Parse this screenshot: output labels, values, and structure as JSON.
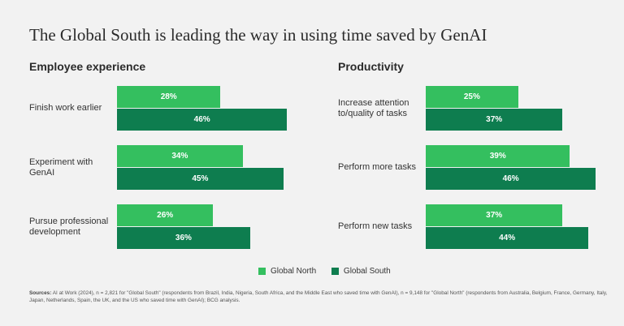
{
  "title": "The Global South is leading the way in using time saved by GenAI",
  "legend": {
    "north": "Global North",
    "south": "Global South",
    "north_color": "#34bf5f",
    "south_color": "#0e7d4f"
  },
  "sources": {
    "label": "Sources:",
    "text": "AI at Work (2024), n = 2,821 for \"Global South\" (respondents from Brazil, India, Nigeria, South Africa, and the Middle East who saved time with GenAI), n = 9,148 for \"Global North\" (respondents from Australia, Belgium, France, Germany, Italy, Japan, Netherlands, Spain, the UK, and the US who saved time with GenAI); BCG analysis."
  },
  "chart_data": [
    {
      "type": "bar",
      "orientation": "horizontal",
      "title": "Employee experience",
      "categories": [
        "Finish work earlier",
        "Experiment with GenAI",
        "Pursue professional development"
      ],
      "series": [
        {
          "name": "Global North",
          "values": [
            28,
            34,
            26
          ],
          "labels": [
            "28%",
            "34%",
            "26%"
          ]
        },
        {
          "name": "Global South",
          "values": [
            46,
            45,
            36
          ],
          "labels": [
            "46%",
            "45%",
            "36%"
          ]
        }
      ],
      "unit": "%",
      "legend_position": "bottom"
    },
    {
      "type": "bar",
      "orientation": "horizontal",
      "title": "Productivity",
      "categories": [
        "Increase attention to/quality of tasks",
        "Perform more tasks",
        "Perform new tasks"
      ],
      "series": [
        {
          "name": "Global North",
          "values": [
            25,
            39,
            37
          ],
          "labels": [
            "25%",
            "39%",
            "37%"
          ]
        },
        {
          "name": "Global South",
          "values": [
            37,
            46,
            44
          ],
          "labels": [
            "37%",
            "46%",
            "44%"
          ]
        }
      ],
      "unit": "%",
      "legend_position": "bottom"
    }
  ]
}
